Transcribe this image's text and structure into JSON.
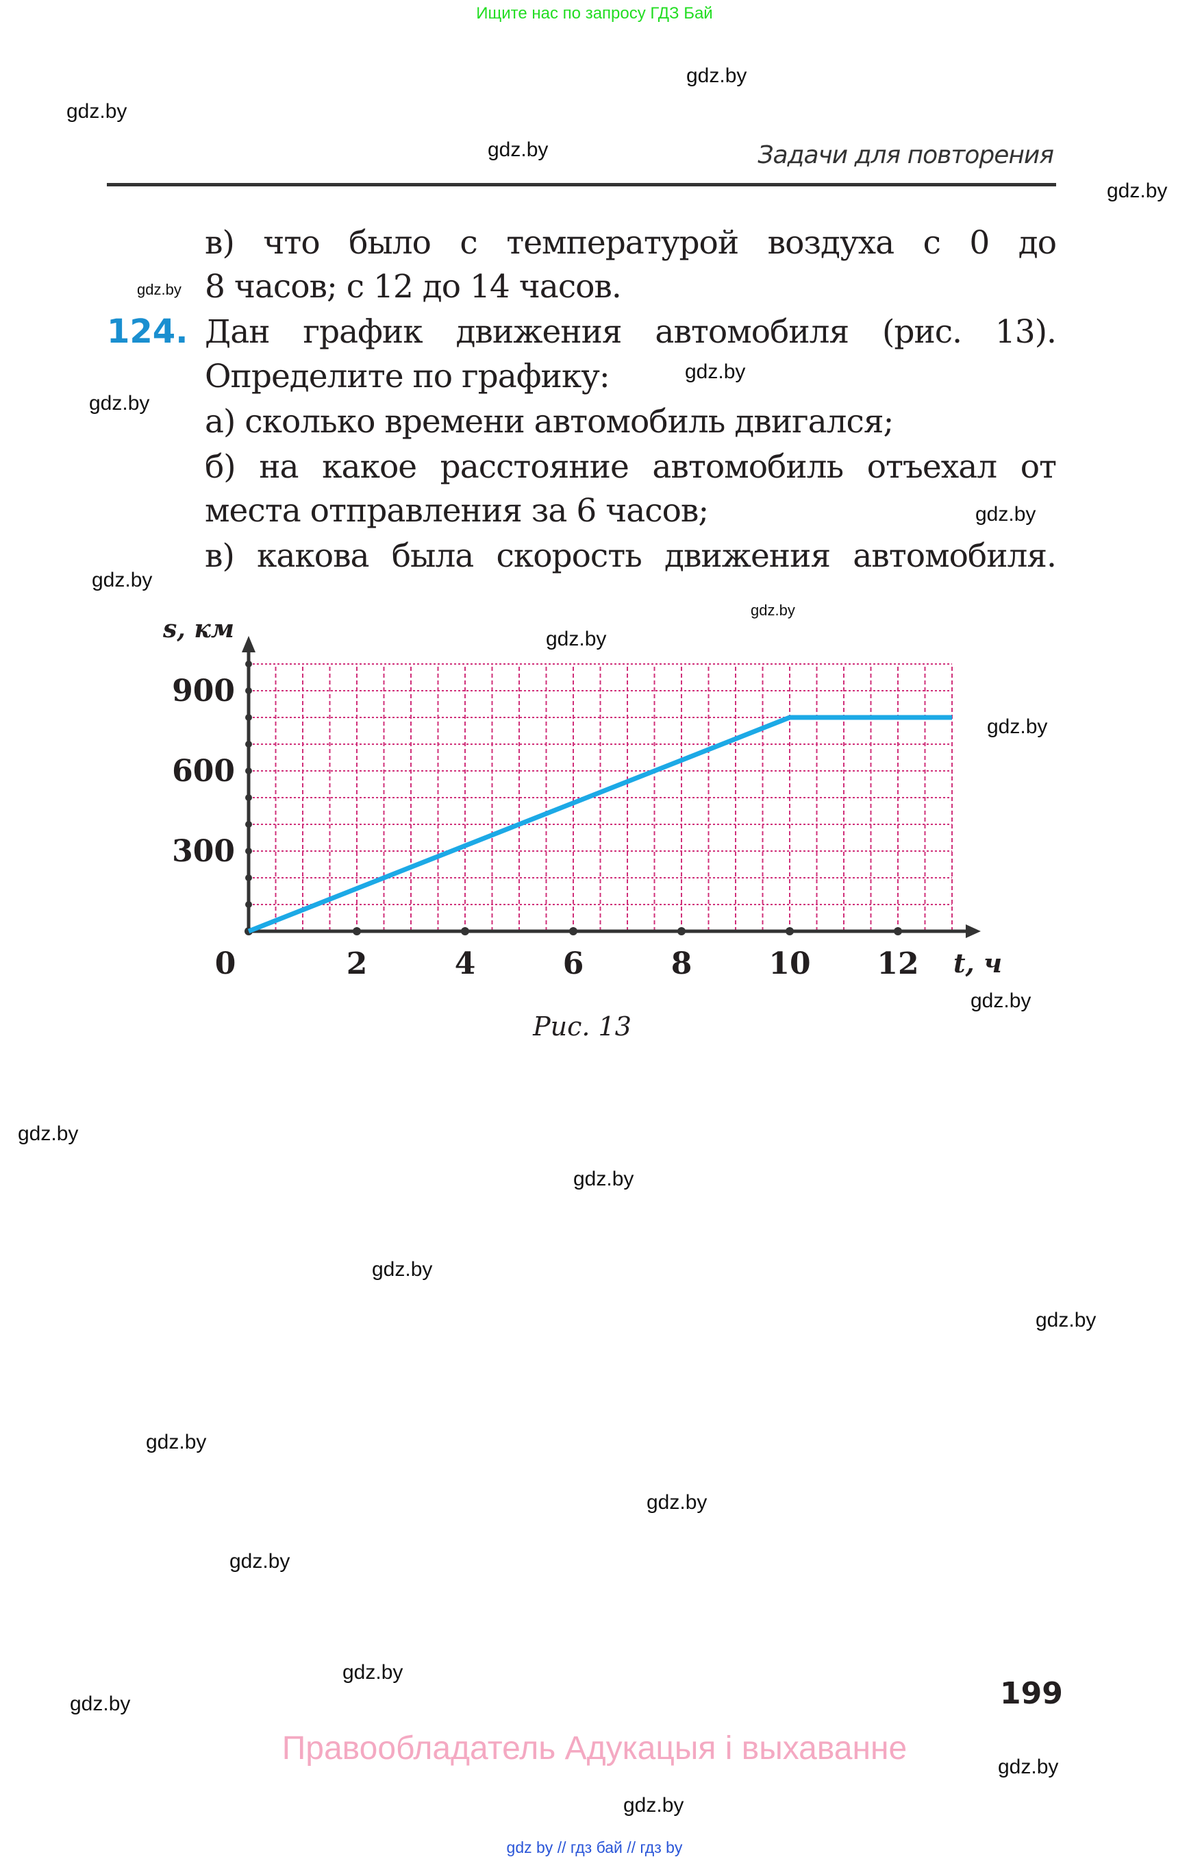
{
  "top_banner": "Ищите нас по запросу ГДЗ Бай",
  "section_title": "Задачи для повторения",
  "text_lines": [
    "в) что было с температурой воздуха с 0 до",
    "8 часов; с 12 до 14 часов.",
    "Дан график движения автомобиля (рис. 13).",
    "Определите по графику:",
    "а) сколько времени автомобиль двигался;",
    "б) на какое расстояние автомобиль отъехал от",
    "места отправления за 6 часов;",
    "в) какова была скорость движения автомобиля."
  ],
  "problem_number": "124.",
  "caption": "Рис. 13",
  "page_number": "199",
  "rights": "Правообладатель Адукацыя і выхаванне",
  "bottom_links": "gdz by  //  гдз бай  //  гдз by",
  "watermark": "gdz.by",
  "colors": {
    "line": "#1ca9e6",
    "grid": "#d0307a",
    "axis": "#333333",
    "number": "#1a8fd0",
    "banner": "#22dd22",
    "rights": "#f4a9c2"
  },
  "chart_data": {
    "type": "line",
    "xlabel": "t, ч",
    "ylabel": "s, км",
    "x_ticks": [
      "0",
      "2",
      "4",
      "6",
      "8",
      "10",
      "12"
    ],
    "y_ticks": [
      "300",
      "600",
      "900"
    ],
    "xlim": [
      0,
      13
    ],
    "ylim": [
      0,
      1000
    ],
    "grid": true,
    "x_grid_step": 0.5,
    "y_grid_step": 100,
    "series": [
      {
        "x": [
          0,
          10,
          13
        ],
        "y": [
          0,
          800,
          800
        ]
      }
    ]
  }
}
